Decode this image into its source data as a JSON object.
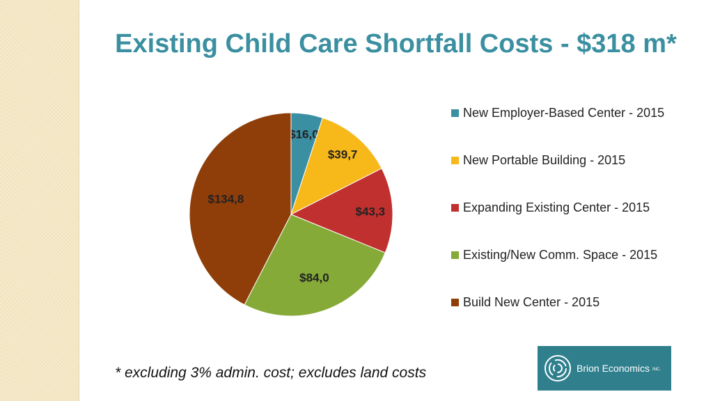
{
  "title": "Existing Child Care Shortfall Costs - $318 m*",
  "footnote": "* excluding 3% admin. cost; excludes land costs",
  "logo": {
    "name": "Brion Economics",
    "suffix": "INC.",
    "background": "#2f7f8d"
  },
  "chart_data": {
    "type": "pie",
    "start_angle_deg": 0,
    "direction": "clockwise",
    "legend_position": "right",
    "slices": [
      {
        "name": "New Employer-Based Center - 2015",
        "value": 16.0,
        "label": "$16,0",
        "color": "#3b8fa3"
      },
      {
        "name": "New Portable Building - 2015",
        "value": 39.7,
        "label": "$39,7",
        "color": "#f7b81a"
      },
      {
        "name": "Expanding Existing Center - 2015",
        "value": 43.3,
        "label": "$43,3",
        "color": "#c0302f"
      },
      {
        "name": "Existing/New Comm. Space - 2015",
        "value": 84.0,
        "label": "$84,0",
        "color": "#85aa37"
      },
      {
        "name": "Build New Center - 2015",
        "value": 134.8,
        "label": "$134,8",
        "color": "#8f3e0a"
      }
    ]
  }
}
